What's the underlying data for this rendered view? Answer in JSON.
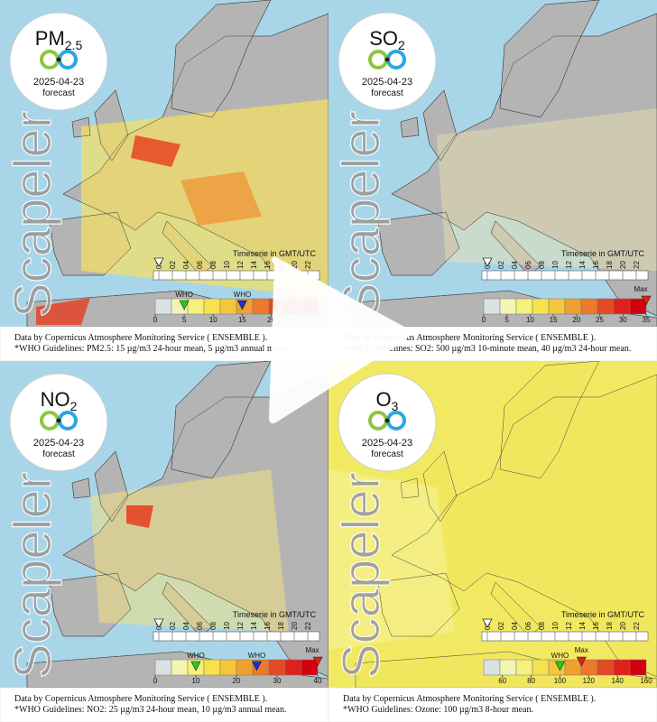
{
  "hours": [
    "00",
    "02",
    "04",
    "06",
    "08",
    "10",
    "12",
    "14",
    "16",
    "18",
    "20",
    "22"
  ],
  "scale_colors": [
    "#d8e2e2",
    "#f4f4b4",
    "#f6f07c",
    "#f6e24c",
    "#f4c63c",
    "#f0a030",
    "#ec7a2a",
    "#e44a24",
    "#e0201c",
    "#d40010"
  ],
  "panels": [
    {
      "title_main": "PM",
      "title_sub": "2.5",
      "date": "2025-04-23",
      "forecast": "forecast",
      "brand": "Scapeler",
      "timeserie": "Timeserie in GMT/UTC",
      "scale": {
        "lim": [
          0,
          28
        ],
        "ticks": [
          0,
          5,
          10,
          15,
          20
        ]
      },
      "who": [
        {
          "label": "WHO",
          "value": 5,
          "color": "#22cc22"
        },
        {
          "label": "WHO",
          "value": 15,
          "color": "#1a2fd0"
        }
      ],
      "footer": [
        "Data by Copernicus Atmosphere Monitoring Service ( ENSEMBLE ).",
        "*WHO Guidelines: PM2.5: 15 µg/m3 24-hour mean, 5 µg/m3 annual mean."
      ]
    },
    {
      "title_main": "SO",
      "title_sub": "2",
      "date": "2025-04-23",
      "forecast": "forecast",
      "brand": "Scapeler",
      "timeserie": "Timeserie in GMT/UTC",
      "scale": {
        "lim": [
          0,
          35
        ],
        "ticks": [
          0,
          5,
          10,
          15,
          20,
          25,
          30,
          35
        ]
      },
      "max": {
        "label": "Max",
        "value": 35
      },
      "footer": [
        "Data by Copernicus Atmosphere Monitoring Service ( ENSEMBLE ).",
        "*WHO Guidelines: SO2: 500 µg/m3 10-minute mean, 40 µg/m3 24-hour mean."
      ]
    },
    {
      "title_main": "NO",
      "title_sub": "2",
      "date": "2025-04-23",
      "forecast": "forecast",
      "brand": "Scapeler",
      "timeserie": "Timeserie in GMT/UTC",
      "scale": {
        "lim": [
          0,
          40
        ],
        "ticks": [
          0,
          10,
          20,
          30,
          40
        ]
      },
      "who": [
        {
          "label": "WHO",
          "value": 10,
          "color": "#22cc22"
        },
        {
          "label": "WHO",
          "value": 25,
          "color": "#1a2fd0"
        }
      ],
      "max": {
        "label": "Max",
        "value": 40
      },
      "footer": [
        "Data by Copernicus Atmosphere Monitoring Service ( ENSEMBLE ).",
        "*WHO Guidelines: NO2: 25 µg/m3 24-hour mean, 10 µg/m3 annual mean."
      ]
    },
    {
      "title_main": "O",
      "title_sub": "3",
      "date": "2025-04-23",
      "forecast": "forecast",
      "brand": "Scapeler",
      "timeserie": "Timeserie in GMT/UTC",
      "scale": {
        "lim": [
          47,
          160
        ],
        "ticks": [
          60,
          80,
          100,
          120,
          140,
          160
        ]
      },
      "who": [
        {
          "label": "WHO",
          "value": 100,
          "color": "#22cc22"
        }
      ],
      "max": {
        "label": "Max",
        "value": 115
      },
      "footer": [
        "Data by Copernicus Atmosphere Monitoring Service ( ENSEMBLE ).",
        "*WHO Guidelines: Ozone: 100 µg/m3 8-hour mean."
      ]
    }
  ]
}
